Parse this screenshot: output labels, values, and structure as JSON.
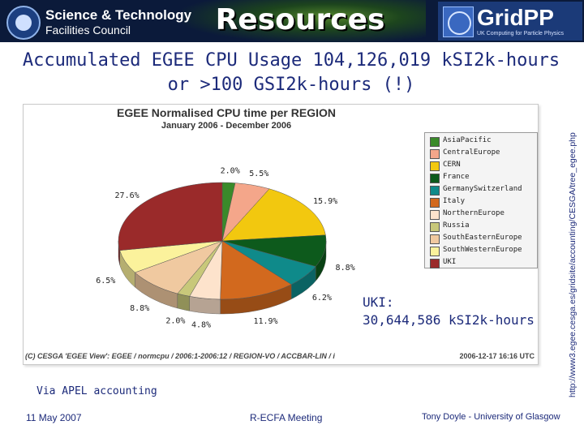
{
  "banner": {
    "org_line1": "Science & Technology",
    "org_line2": "Facilities Council",
    "title": "Resources",
    "gridpp_name": "GridPP",
    "gridpp_tagline": "UK Computing for Particle Physics"
  },
  "headline": {
    "line1": "Accumulated EGEE CPU Usage 104,126,019 kSI2k-hours",
    "line2": "or >100 GSI2k-hours (!)"
  },
  "side_url": "http://www3.egee.cesga.es/gridsite/accounting/CESGA/tree_egee.php",
  "uki_note": {
    "line1": "UKI:",
    "line2": "30,644,586 kSI2k-hours"
  },
  "via": "Via APEL accounting",
  "footer": {
    "date": "11 May 2007",
    "meeting": "R-ECFA Meeting",
    "author": "Tony Doyle - University of Glasgow"
  },
  "chart_data": {
    "type": "pie",
    "title": "EGEE Normalised CPU time per REGION",
    "subtitle": "January 2006 - December 2006",
    "legend_position": "right",
    "series": [
      {
        "name": "AsiaPacific",
        "value": 2.0,
        "label": "2.0%",
        "color": "#3a8a2a"
      },
      {
        "name": "CentralEurope",
        "value": 5.5,
        "label": "5.5%",
        "color": "#f4a68a"
      },
      {
        "name": "CERN",
        "value": 15.9,
        "label": "15.9%",
        "color": "#f2c80f"
      },
      {
        "name": "France",
        "value": 8.8,
        "label": "8.8%",
        "color": "#0d5a1c"
      },
      {
        "name": "GermanySwitzerland",
        "value": 6.2,
        "label": "6.2%",
        "color": "#0f8a8a"
      },
      {
        "name": "Italy",
        "value": 11.9,
        "label": "11.9%",
        "color": "#d2691e"
      },
      {
        "name": "NorthernEurope",
        "value": 4.8,
        "label": "4.8%",
        "color": "#fde3cc"
      },
      {
        "name": "Russia",
        "value": 2.0,
        "label": "2.0%",
        "color": "#c8c87a"
      },
      {
        "name": "SouthEasternEurope",
        "value": 8.8,
        "label": "8.8%",
        "color": "#f0c9a0"
      },
      {
        "name": "SouthWesternEurope",
        "value": 6.5,
        "label": "6.5%",
        "color": "#fbf29c"
      },
      {
        "name": "UKI",
        "value": 27.6,
        "label": "27.6%",
        "color": "#9a2a2a"
      }
    ],
    "footer_left": "(C) CESGA 'EGEE View': EGEE / normcpu / 2006:1-2006:12 / REGION-VO / ACCBAR-LIN / i",
    "footer_right": "2006-12-17 16:16 UTC"
  }
}
